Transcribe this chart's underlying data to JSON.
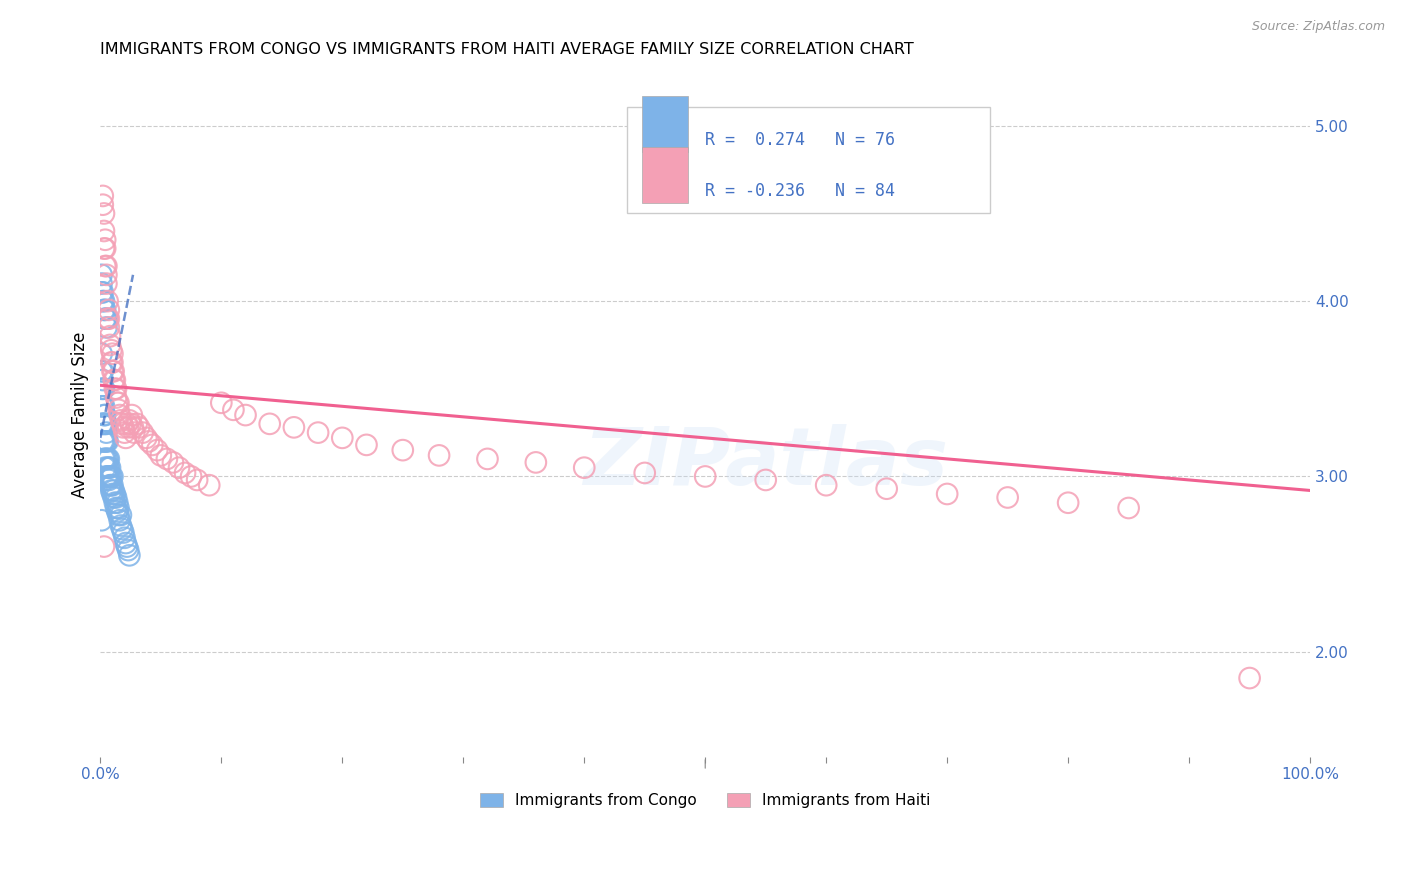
{
  "title": "IMMIGRANTS FROM CONGO VS IMMIGRANTS FROM HAITI AVERAGE FAMILY SIZE CORRELATION CHART",
  "source": "Source: ZipAtlas.com",
  "ylabel": "Average Family Size",
  "xlim": [
    0.0,
    1.0
  ],
  "ylim": [
    1.4,
    5.3
  ],
  "yticks_right": [
    2.0,
    3.0,
    4.0,
    5.0
  ],
  "congo_R": 0.274,
  "congo_N": 76,
  "haiti_R": -0.236,
  "haiti_N": 84,
  "congo_color": "#7eb3e8",
  "haiti_color": "#f4a0b5",
  "congo_line_color": "#3d6bbf",
  "haiti_line_color": "#f06090",
  "watermark": "ZIPatlas",
  "congo_x": [
    0.001,
    0.001,
    0.001,
    0.001,
    0.001,
    0.002,
    0.002,
    0.002,
    0.002,
    0.002,
    0.002,
    0.003,
    0.003,
    0.003,
    0.003,
    0.003,
    0.003,
    0.004,
    0.004,
    0.004,
    0.004,
    0.004,
    0.005,
    0.005,
    0.005,
    0.005,
    0.005,
    0.006,
    0.006,
    0.006,
    0.006,
    0.007,
    0.007,
    0.007,
    0.007,
    0.008,
    0.008,
    0.008,
    0.009,
    0.009,
    0.009,
    0.01,
    0.01,
    0.01,
    0.011,
    0.011,
    0.012,
    0.012,
    0.013,
    0.013,
    0.014,
    0.014,
    0.015,
    0.015,
    0.016,
    0.017,
    0.017,
    0.018,
    0.019,
    0.02,
    0.021,
    0.022,
    0.023,
    0.024,
    0.001,
    0.001,
    0.001,
    0.002,
    0.002,
    0.003,
    0.003,
    0.004,
    0.004,
    0.005,
    0.005,
    0.001
  ],
  "congo_y": [
    3.3,
    3.4,
    3.5,
    3.6,
    3.7,
    3.2,
    3.3,
    3.4,
    3.5,
    3.55,
    3.6,
    3.1,
    3.2,
    3.3,
    3.35,
    3.4,
    3.5,
    3.05,
    3.1,
    3.2,
    3.3,
    3.35,
    3.0,
    3.1,
    3.2,
    3.25,
    3.3,
    3.0,
    3.05,
    3.1,
    3.2,
    2.98,
    3.0,
    3.05,
    3.1,
    2.95,
    3.0,
    3.05,
    2.92,
    2.95,
    3.0,
    2.9,
    2.95,
    3.0,
    2.88,
    2.92,
    2.85,
    2.9,
    2.82,
    2.88,
    2.8,
    2.85,
    2.78,
    2.82,
    2.75,
    2.72,
    2.78,
    2.7,
    2.68,
    2.65,
    2.62,
    2.6,
    2.58,
    2.55,
    4.05,
    4.1,
    4.15,
    4.0,
    4.05,
    3.95,
    4.0,
    3.9,
    3.95,
    3.85,
    3.9,
    2.75
  ],
  "haiti_x": [
    0.002,
    0.002,
    0.003,
    0.003,
    0.003,
    0.004,
    0.004,
    0.004,
    0.005,
    0.005,
    0.005,
    0.006,
    0.006,
    0.007,
    0.007,
    0.007,
    0.008,
    0.008,
    0.009,
    0.009,
    0.01,
    0.01,
    0.01,
    0.011,
    0.011,
    0.012,
    0.012,
    0.013,
    0.013,
    0.014,
    0.015,
    0.015,
    0.016,
    0.017,
    0.018,
    0.019,
    0.02,
    0.021,
    0.022,
    0.023,
    0.024,
    0.025,
    0.026,
    0.027,
    0.028,
    0.03,
    0.032,
    0.035,
    0.038,
    0.04,
    0.043,
    0.047,
    0.05,
    0.055,
    0.06,
    0.065,
    0.07,
    0.075,
    0.08,
    0.09,
    0.1,
    0.11,
    0.12,
    0.14,
    0.16,
    0.18,
    0.2,
    0.22,
    0.25,
    0.28,
    0.32,
    0.36,
    0.4,
    0.45,
    0.5,
    0.55,
    0.6,
    0.65,
    0.7,
    0.75,
    0.8,
    0.85,
    0.95,
    0.003
  ],
  "haiti_y": [
    4.55,
    4.6,
    4.3,
    4.4,
    4.5,
    4.2,
    4.3,
    4.35,
    4.1,
    4.15,
    4.2,
    3.9,
    4.0,
    3.85,
    3.9,
    3.95,
    3.75,
    3.8,
    3.65,
    3.72,
    3.6,
    3.65,
    3.7,
    3.55,
    3.6,
    3.5,
    3.55,
    3.45,
    3.5,
    3.42,
    3.38,
    3.42,
    3.35,
    3.32,
    3.3,
    3.28,
    3.25,
    3.22,
    3.3,
    3.28,
    3.32,
    3.3,
    3.35,
    3.28,
    3.25,
    3.3,
    3.28,
    3.25,
    3.22,
    3.2,
    3.18,
    3.15,
    3.12,
    3.1,
    3.08,
    3.05,
    3.02,
    3.0,
    2.98,
    2.95,
    3.42,
    3.38,
    3.35,
    3.3,
    3.28,
    3.25,
    3.22,
    3.18,
    3.15,
    3.12,
    3.1,
    3.08,
    3.05,
    3.02,
    3.0,
    2.98,
    2.95,
    2.93,
    2.9,
    2.88,
    2.85,
    2.82,
    1.85,
    2.6
  ],
  "congo_trend_x0": 0.0,
  "congo_trend_x1": 0.027,
  "congo_trend_y0": 3.22,
  "congo_trend_y1": 4.15,
  "haiti_trend_x0": 0.0,
  "haiti_trend_x1": 1.0,
  "haiti_trend_y0": 3.52,
  "haiti_trend_y1": 2.92
}
